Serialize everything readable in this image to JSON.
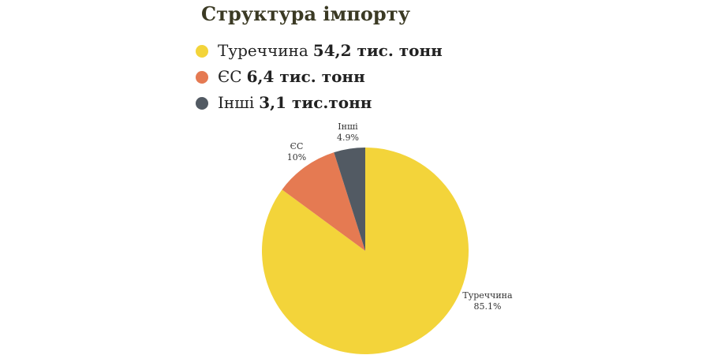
{
  "chart_data": {
    "type": "pie",
    "title": "Структура імпорту",
    "categories": [
      "Туреччина",
      "ЄС",
      "Інші"
    ],
    "legend_amounts": [
      "54,2 тис. тонн",
      "6,4 тис. тонн",
      "3,1 тис.тонн"
    ],
    "values": [
      85.1,
      10,
      4.9
    ],
    "value_labels": [
      "85.1%",
      "10%",
      "4.9%"
    ],
    "colors": [
      "#f3d43a",
      "#e57a52",
      "#525a63"
    ]
  }
}
